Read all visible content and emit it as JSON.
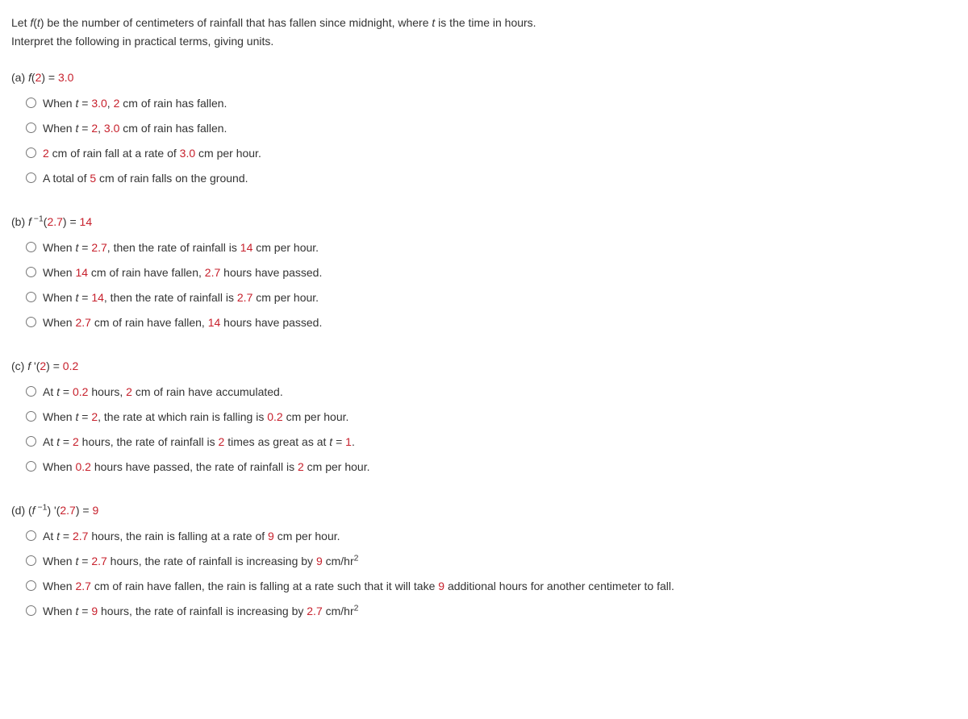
{
  "colors": {
    "text": "#333333",
    "number": "#c7202c",
    "background": "#ffffff"
  },
  "typography": {
    "font_family": "Verdana, Geneva, sans-serif",
    "font_size_pt": 11,
    "line_height": 1.5
  },
  "intro": {
    "line1_pre": "Let ",
    "line1_func": "f",
    "line1_mid1": "(",
    "line1_var": "t",
    "line1_mid2": ") be the number of centimeters of rainfall that has fallen since midnight, where ",
    "line1_var2": "t",
    "line1_post": " is the time in hours.",
    "line2": "Interpret the following in practical terms, giving units."
  },
  "parts": {
    "a": {
      "label": "(a) ",
      "prompt_f": "f",
      "prompt_open": "(",
      "prompt_arg": "2",
      "prompt_close": ") = ",
      "prompt_val": "3.0",
      "options": [
        {
          "pre": "When ",
          "var": "t",
          "eq": " = ",
          "n1": "3.0",
          "mid": ", ",
          "n2": "2",
          "post": " cm of rain has fallen."
        },
        {
          "pre": "When ",
          "var": "t",
          "eq": " = ",
          "n1": "2",
          "mid": ", ",
          "n2": "3.0",
          "post": " cm of rain has fallen."
        },
        {
          "pre": "",
          "var": "",
          "eq": "",
          "n1": "2",
          "mid": " cm of rain fall at a rate of ",
          "n2": "3.0",
          "post": " cm per hour."
        },
        {
          "pre": "A total of ",
          "var": "",
          "eq": "",
          "n1": "5",
          "mid": "",
          "n2": "",
          "post": " cm of rain falls on the ground."
        }
      ]
    },
    "b": {
      "label": "(b) ",
      "prompt_f": "f",
      "prompt_sup": " −1",
      "prompt_open": "(",
      "prompt_arg": "2.7",
      "prompt_close": ") = ",
      "prompt_val": "14",
      "options": [
        {
          "pre": "When ",
          "var": "t",
          "eq": " = ",
          "n1": "2.7",
          "mid": ", then the rate of rainfall is ",
          "n2": "14",
          "post": " cm per hour."
        },
        {
          "pre": "When ",
          "var": "",
          "eq": "",
          "n1": "14",
          "mid": " cm of rain have fallen, ",
          "n2": "2.7",
          "post": " hours have passed."
        },
        {
          "pre": "When ",
          "var": "t",
          "eq": " = ",
          "n1": "14",
          "mid": ", then the rate of rainfall is ",
          "n2": "2.7",
          "post": " cm per hour."
        },
        {
          "pre": "When ",
          "var": "",
          "eq": "",
          "n1": "2.7",
          "mid": " cm of rain have fallen, ",
          "n2": "14",
          "post": " hours have passed."
        }
      ]
    },
    "c": {
      "label": "(c) ",
      "prompt_f": "f ",
      "prompt_prime": "'",
      "prompt_open": "(",
      "prompt_arg": "2",
      "prompt_close": ") = ",
      "prompt_val": "0.2",
      "options": [
        {
          "pre": "At ",
          "var": "t",
          "eq": " = ",
          "n1": "0.2",
          "mid": " hours, ",
          "n2": "2",
          "post": " cm of rain have accumulated."
        },
        {
          "pre": "When ",
          "var": "t",
          "eq": " = ",
          "n1": "2",
          "mid": ", the rate at which rain is falling is ",
          "n2": "0.2",
          "post": " cm per hour."
        },
        {
          "pre": "At ",
          "var": "t",
          "eq": " = ",
          "n1": "2",
          "mid": " hours, the rate of rainfall is ",
          "n2": "2",
          "post_pre": " times as great as at ",
          "post_var": "t",
          "post_eq": " = ",
          "post_n": "1",
          "post": "."
        },
        {
          "pre": "When ",
          "var": "",
          "eq": "",
          "n1": "0.2",
          "mid": " hours have passed, the rate of rainfall is ",
          "n2": "2",
          "post": " cm per hour."
        }
      ]
    },
    "d": {
      "label": "(d) (",
      "prompt_f": "f",
      "prompt_sup": " −1",
      "prompt_paren": ") ",
      "prompt_prime": "'",
      "prompt_open": "(",
      "prompt_arg": "2.7",
      "prompt_close": ") = ",
      "prompt_val": "9",
      "options": [
        {
          "pre": "At ",
          "var": "t",
          "eq": " = ",
          "n1": "2.7",
          "mid": " hours, the rain is falling at a rate of ",
          "n2": "9",
          "post": " cm per hour."
        },
        {
          "pre": "When ",
          "var": "t",
          "eq": " = ",
          "n1": "2.7",
          "mid": " hours, the rate of rainfall is increasing by ",
          "n2": "9",
          "post": " cm/hr",
          "sup": "2"
        },
        {
          "pre": "When ",
          "var": "",
          "eq": "",
          "n1": "2.7",
          "mid": " cm of rain have fallen, the rain is falling at a rate such that it will take ",
          "n2": "9",
          "post": " additional hours for another centimeter to fall."
        },
        {
          "pre": "When ",
          "var": "t",
          "eq": " = ",
          "n1": "9",
          "mid": " hours, the rate of rainfall is increasing by ",
          "n2": "2.7",
          "post": " cm/hr",
          "sup": "2"
        }
      ]
    }
  }
}
